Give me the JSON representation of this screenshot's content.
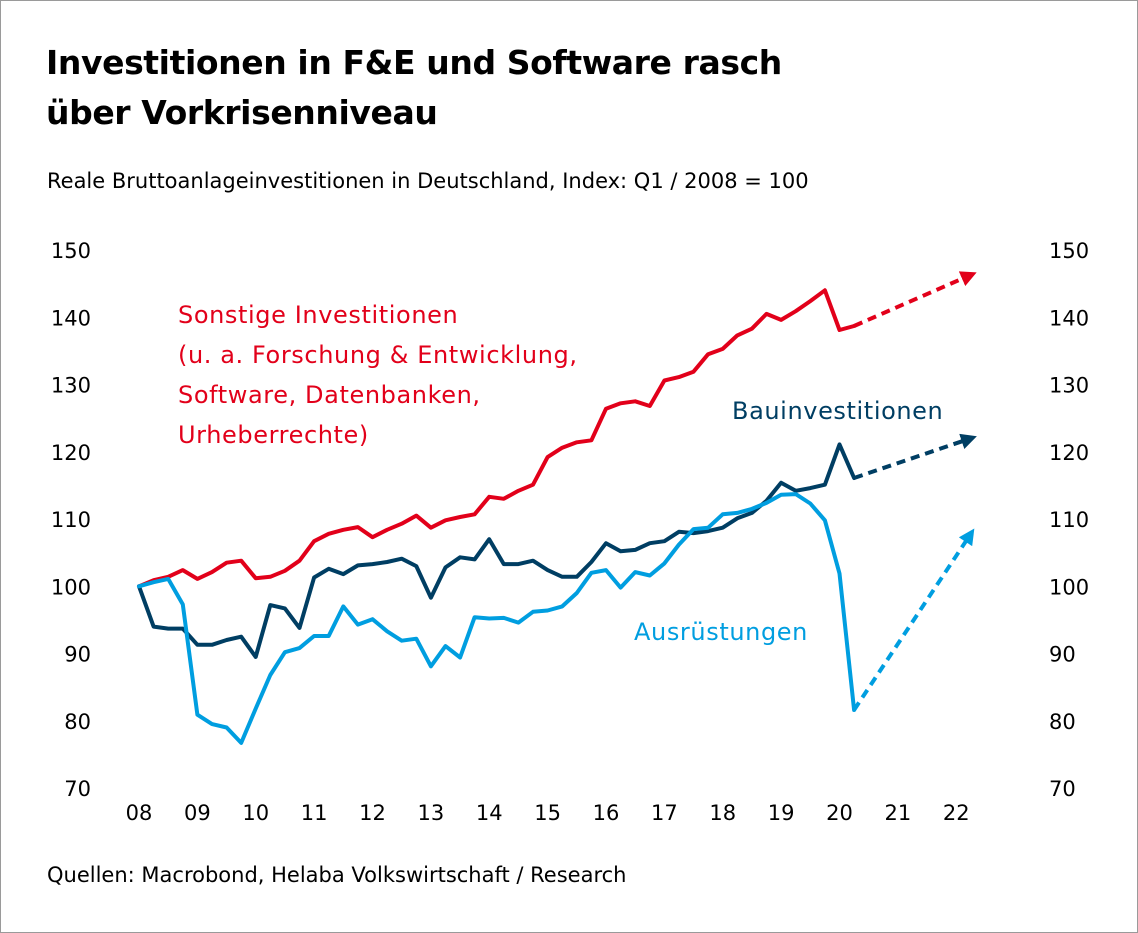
{
  "header": {
    "title_line1": "Investitionen in F&E und Software rasch",
    "title_line2": "über Vorkrisenniveau",
    "subtitle": "Reale Bruttoanlageinvestitionen in Deutschland, Index: Q1 / 2008 = 100"
  },
  "footer": {
    "source": "Quellen: Macrobond, Helaba Volkswirtschaft / Research"
  },
  "chart_data": {
    "type": "line",
    "title": "Investitionen in F&E und Software rasch über Vorkrisenniveau",
    "subtitle": "Reale Bruttoanlageinvestitionen in Deutschland, Index: Q1 / 2008 = 100",
    "ylim": [
      70,
      150
    ],
    "yticks": [
      "150",
      "140",
      "130",
      "120",
      "110",
      "100",
      "90",
      "80",
      "70"
    ],
    "xticks": [
      "08",
      "09",
      "10",
      "11",
      "12",
      "13",
      "14",
      "15",
      "16",
      "17",
      "18",
      "19",
      "20",
      "21",
      "22"
    ],
    "xlim": [
      2008,
      2022.75
    ],
    "series": [
      {
        "name": "Sonstige Investitionen",
        "label_lines": [
          "Sonstige Investitionen",
          "(u. a. Forschung & Entwicklung,",
          "Software, Datenbanken,",
          "Urheberrechte)"
        ],
        "color": "#e2001a",
        "x": [
          2008.0,
          2008.25,
          2008.5,
          2008.75,
          2009.0,
          2009.25,
          2009.5,
          2009.75,
          2010.0,
          2010.25,
          2010.5,
          2010.75,
          2011.0,
          2011.25,
          2011.5,
          2011.75,
          2012.0,
          2012.25,
          2012.5,
          2012.75,
          2013.0,
          2013.25,
          2013.5,
          2013.75,
          2014.0,
          2014.25,
          2014.5,
          2014.75,
          2015.0,
          2015.25,
          2015.5,
          2015.75,
          2016.0,
          2016.25,
          2016.5,
          2016.75,
          2017.0,
          2017.25,
          2017.5,
          2017.75,
          2018.0,
          2018.25,
          2018.5,
          2018.75,
          2019.0,
          2019.25,
          2019.5,
          2019.75,
          2020.0,
          2020.25
        ],
        "values": [
          100,
          100.9,
          101.4,
          102.4,
          101.1,
          102.1,
          103.5,
          103.8,
          101.2,
          101.4,
          102.3,
          103.8,
          106.7,
          107.8,
          108.4,
          108.8,
          107.3,
          108.4,
          109.3,
          110.5,
          108.7,
          109.8,
          110.3,
          110.7,
          113.3,
          113,
          114.2,
          115.1,
          119.2,
          120.6,
          121.4,
          121.7,
          126.4,
          127.2,
          127.5,
          126.8,
          130.6,
          131.1,
          131.9,
          134.5,
          135.3,
          137.3,
          138.3,
          140.5,
          139.6,
          140.9,
          142.4,
          144,
          138.1,
          138.7
        ],
        "forecast": {
          "x": [
            2020.25,
            2022.25
          ],
          "values": [
            138.7,
            146.3
          ]
        }
      },
      {
        "name": "Bauinvestitionen",
        "color": "#003e63",
        "x": [
          2008.0,
          2008.25,
          2008.5,
          2008.75,
          2009.0,
          2009.25,
          2009.5,
          2009.75,
          2010.0,
          2010.25,
          2010.5,
          2010.75,
          2011.0,
          2011.25,
          2011.5,
          2011.75,
          2012.0,
          2012.25,
          2012.5,
          2012.75,
          2013.0,
          2013.25,
          2013.5,
          2013.75,
          2014.0,
          2014.25,
          2014.5,
          2014.75,
          2015.0,
          2015.25,
          2015.5,
          2015.75,
          2016.0,
          2016.25,
          2016.5,
          2016.75,
          2017.0,
          2017.25,
          2017.5,
          2017.75,
          2018.0,
          2018.25,
          2018.5,
          2018.75,
          2019.0,
          2019.25,
          2019.5,
          2019.75,
          2020.0,
          2020.25
        ],
        "values": [
          100,
          94,
          93.7,
          93.7,
          91.3,
          91.3,
          92,
          92.5,
          89.5,
          97.2,
          96.7,
          93.8,
          101.3,
          102.6,
          101.8,
          103.1,
          103.3,
          103.6,
          104.1,
          103,
          98.3,
          102.8,
          104.3,
          104,
          107,
          103.3,
          103.3,
          103.8,
          102.4,
          101.4,
          101.4,
          103.6,
          106.4,
          105.2,
          105.4,
          106.4,
          106.7,
          108.1,
          107.9,
          108.2,
          108.7,
          110.1,
          110.9,
          112.7,
          115.4,
          114.2,
          114.6,
          115.1,
          121.1,
          116.1
        ],
        "forecast": {
          "x": [
            2020.25,
            2022.25
          ],
          "values": [
            116.1,
            122
          ]
        }
      },
      {
        "name": "Ausrüstungen",
        "color": "#009ee0",
        "x": [
          2008.0,
          2008.25,
          2008.5,
          2008.75,
          2009.0,
          2009.25,
          2009.5,
          2009.75,
          2010.0,
          2010.25,
          2010.5,
          2010.75,
          2011.0,
          2011.25,
          2011.5,
          2011.75,
          2012.0,
          2012.25,
          2012.5,
          2012.75,
          2013.0,
          2013.25,
          2013.5,
          2013.75,
          2014.0,
          2014.25,
          2014.5,
          2014.75,
          2015.0,
          2015.25,
          2015.5,
          2015.75,
          2016.0,
          2016.25,
          2016.5,
          2016.75,
          2017.0,
          2017.25,
          2017.5,
          2017.75,
          2018.0,
          2018.25,
          2018.5,
          2018.75,
          2019.0,
          2019.25,
          2019.5,
          2019.75,
          2020.0,
          2020.25
        ],
        "values": [
          100,
          100.6,
          101.1,
          97.3,
          80.9,
          79.5,
          79,
          76.7,
          81.8,
          86.8,
          90.2,
          90.8,
          92.6,
          92.6,
          97,
          94.3,
          95.1,
          93.3,
          91.9,
          92.2,
          88.1,
          91.1,
          89.4,
          95.4,
          95.2,
          95.3,
          94.6,
          96.2,
          96.4,
          97,
          99,
          102,
          102.4,
          99.8,
          102.1,
          101.6,
          103.4,
          106.2,
          108.5,
          108.7,
          110.7,
          110.9,
          111.5,
          112.4,
          113.6,
          113.7,
          112.3,
          109.8,
          101.9,
          81.6
        ],
        "forecast": {
          "x": [
            2020.25,
            2022.25
          ],
          "values": [
            81.6,
            107.8
          ]
        }
      }
    ]
  }
}
